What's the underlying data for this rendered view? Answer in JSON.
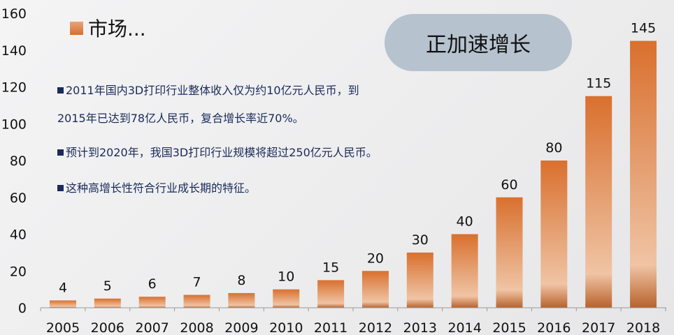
{
  "heading": "市场...",
  "pill_label": "正加速增长",
  "notes": [
    "2011年国内3D打印行业整体收入仅为约10亿元人民币，到",
    "2015年已达到78亿人民币，复合增长率近70%。",
    "预计到2020年，我国3D打印行业规模将超过250亿元人民币。",
    "这种高增长性符合行业成长期的特征。"
  ],
  "colors": {
    "bar_top": "#d9702e",
    "bar_light": "#f0c4a4",
    "bar_bottom": "#b8622c",
    "note_text": "#1a2a5a",
    "pill": "#b7c2cf"
  },
  "chart_data": {
    "type": "bar",
    "title": "",
    "xlabel": "",
    "ylabel": "",
    "categories": [
      "2005",
      "2006",
      "2007",
      "2008",
      "2009",
      "2010",
      "2011",
      "2012",
      "2013",
      "2014",
      "2015",
      "2016",
      "2017",
      "2018"
    ],
    "values": [
      4,
      5,
      6,
      7,
      8,
      10,
      15,
      20,
      30,
      40,
      60,
      80,
      115,
      145
    ],
    "ylim": [
      0,
      160
    ],
    "yticks": [
      0,
      20,
      40,
      60,
      80,
      100,
      120,
      140,
      160
    ],
    "grid": false,
    "data_labels": true
  }
}
